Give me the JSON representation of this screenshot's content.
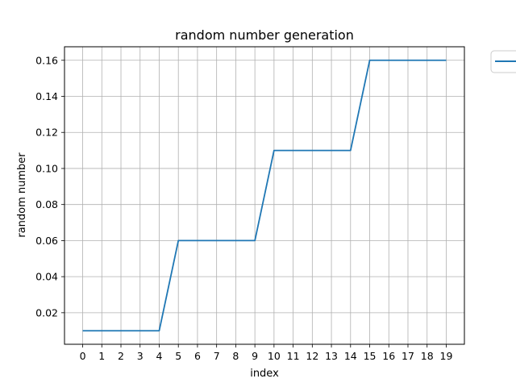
{
  "chart_data": {
    "type": "line",
    "title": "random number generation",
    "xlabel": "index",
    "ylabel": "random number",
    "x": [
      0,
      1,
      2,
      3,
      4,
      5,
      6,
      7,
      8,
      9,
      10,
      11,
      12,
      13,
      14,
      15,
      16,
      17,
      18,
      19
    ],
    "series": [
      {
        "values": [
          0.01,
          0.01,
          0.01,
          0.01,
          0.01,
          0.06,
          0.06,
          0.06,
          0.06,
          0.06,
          0.11,
          0.11,
          0.11,
          0.11,
          0.11,
          0.16,
          0.16,
          0.16,
          0.16,
          0.16
        ]
      }
    ],
    "xlim": [
      -0.95,
      19.95
    ],
    "ylim": [
      0.0025,
      0.1675
    ],
    "xticks": [
      "0",
      "1",
      "2",
      "3",
      "4",
      "5",
      "6",
      "7",
      "8",
      "9",
      "10",
      "11",
      "12",
      "13",
      "14",
      "15",
      "16",
      "17",
      "18",
      "19"
    ],
    "yticks": [
      0.02,
      0.04,
      0.06,
      0.08,
      0.1,
      0.12,
      0.14,
      0.16
    ],
    "ytick_labels": [
      "0.02",
      "0.04",
      "0.06",
      "0.08",
      "0.10",
      "0.12",
      "0.14",
      "0.16"
    ],
    "grid": true,
    "legend": "top-right outside",
    "colors": {
      "line": "#1f77b4",
      "grid": "#b0b0b0",
      "axes": "#000000"
    }
  }
}
